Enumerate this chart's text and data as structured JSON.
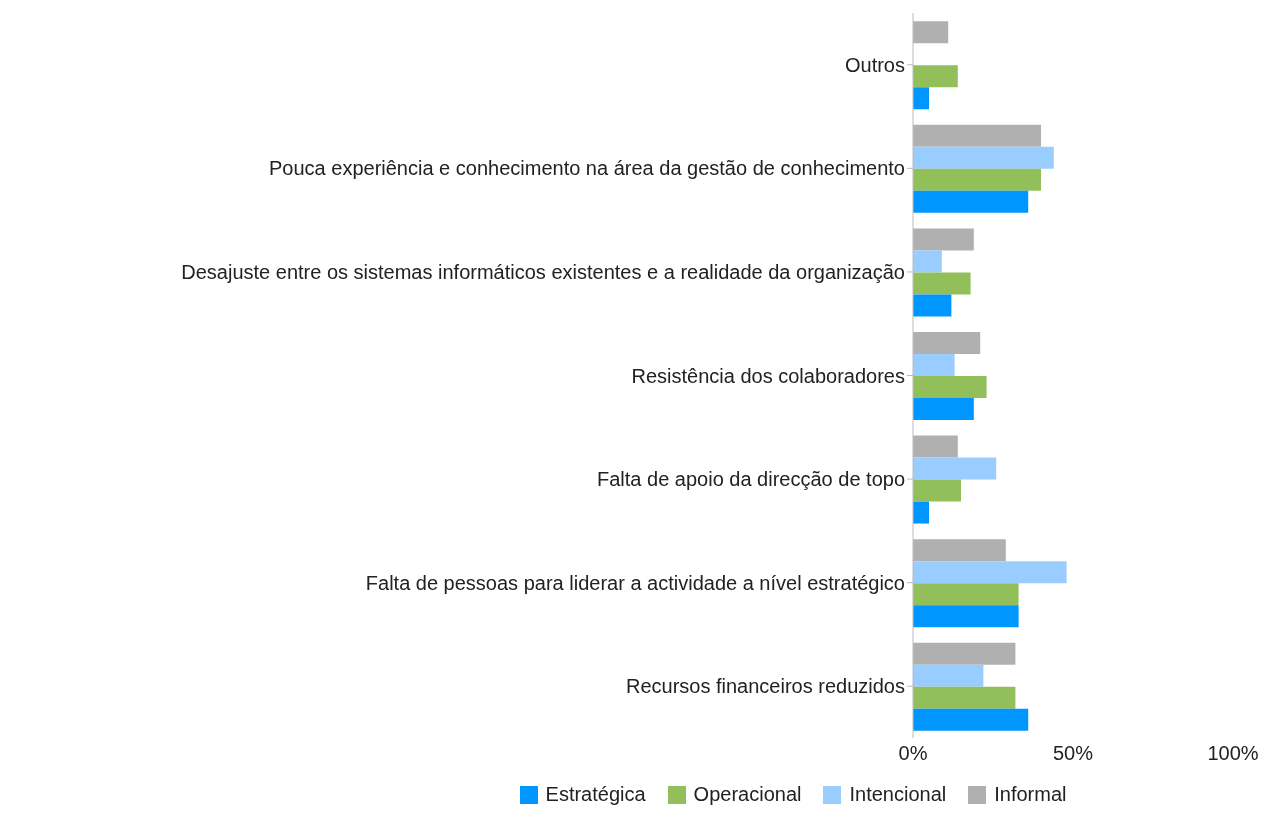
{
  "chart_data": {
    "type": "bar",
    "orientation": "horizontal",
    "categories": [
      "Outros",
      "Pouca experiência e conhecimento na área da gestão de conhecimento",
      "Desajuste entre os sistemas informáticos existentes e a realidade da organização",
      "Resistência dos colaboradores",
      "Falta de apoio da direcção de topo",
      "Falta de pessoas para liderar a actividade a nível estratégico",
      "Recursos financeiros reduzidos"
    ],
    "series": [
      {
        "name": "Estratégica",
        "color": "#0096ff",
        "values": [
          5,
          36,
          12,
          19,
          5,
          33,
          36
        ]
      },
      {
        "name": "Operacional",
        "color": "#92bf5a",
        "values": [
          14,
          40,
          18,
          23,
          15,
          33,
          32
        ]
      },
      {
        "name": "Intencional",
        "color": "#99ccff",
        "values": [
          null,
          44,
          9,
          13,
          26,
          48,
          22
        ]
      },
      {
        "name": "Informal",
        "color": "#b0b0b0",
        "values": [
          11,
          40,
          19,
          21,
          14,
          29,
          32
        ]
      }
    ],
    "xlim": [
      0,
      100
    ],
    "xticks": [
      {
        "value": 0,
        "label": "0%"
      },
      {
        "value": 50,
        "label": "50%"
      },
      {
        "value": 100,
        "label": "100%"
      }
    ],
    "legend": "bottom"
  }
}
